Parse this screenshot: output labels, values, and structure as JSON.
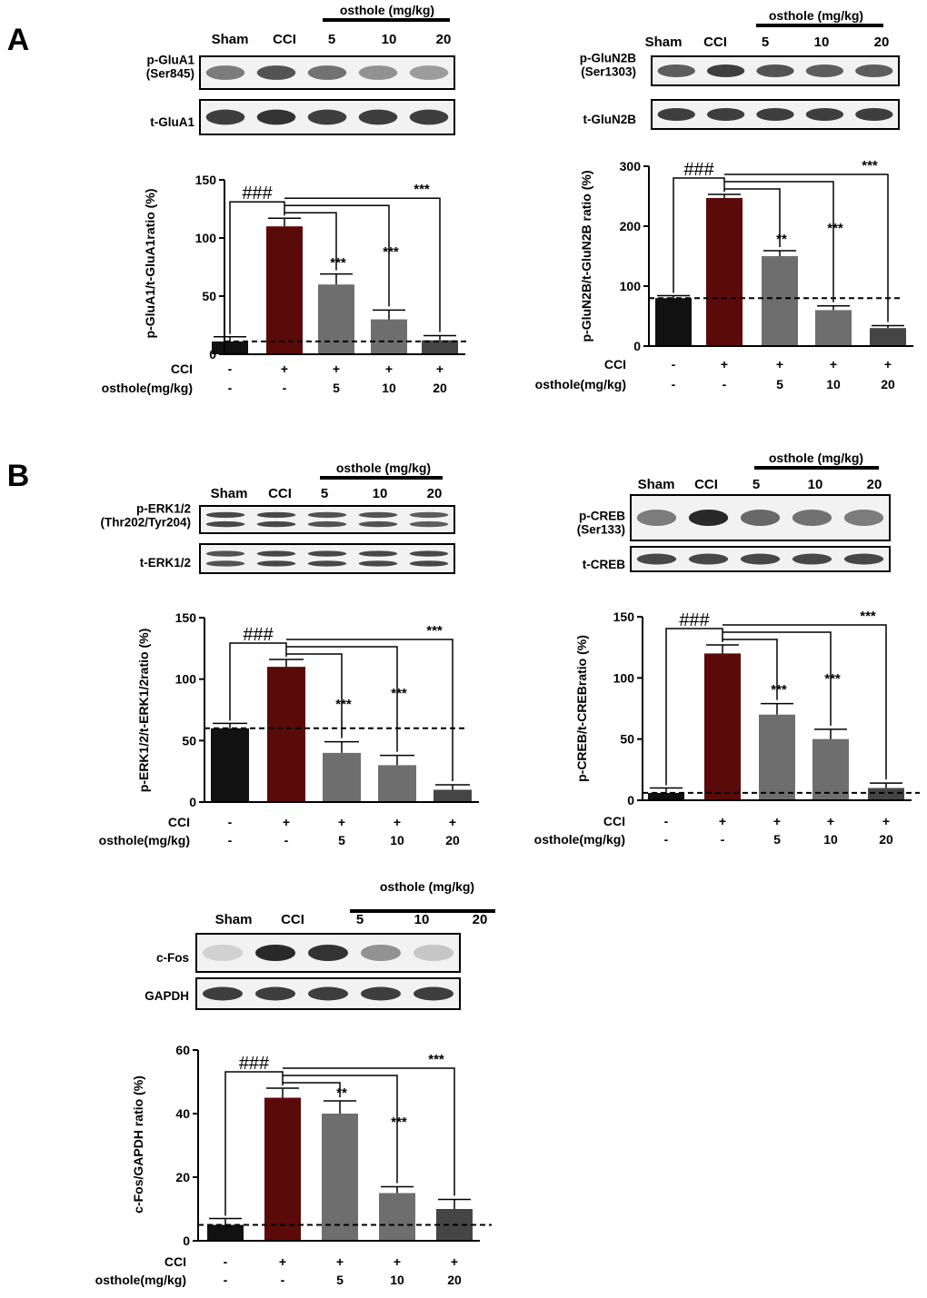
{
  "panels": [
    {
      "letter": "A",
      "blot": {
        "lanes": [
          "Sham",
          "CCI",
          "5",
          "10",
          "20"
        ],
        "treatment_label": "osthole (mg/kg)",
        "rows": [
          {
            "label_lines": [
              "p-GluA1",
              "(Ser845)"
            ],
            "intensity": [
              0.55,
              0.75,
              0.6,
              0.45,
              0.4
            ]
          },
          {
            "label_lines": [
              "t-GluA1"
            ],
            "intensity": [
              0.85,
              0.9,
              0.85,
              0.85,
              0.85
            ]
          }
        ]
      },
      "chart_data": {
        "type": "bar",
        "categories": [
          "Sham",
          "CCI",
          "osthole 5",
          "osthole 10",
          "osthole 20"
        ],
        "values": [
          11,
          110,
          60,
          30,
          12
        ],
        "errors": [
          4,
          7,
          9,
          8,
          4
        ],
        "ylabel": "p-GluA1/t-GluA1ratio (%)",
        "ylim": [
          0,
          150
        ],
        "yticks": [
          0,
          50,
          100,
          150
        ],
        "baseline_value": 11,
        "bar_colors": [
          "#111111",
          "#5b0a0a",
          "#6e6e6e",
          "#6e6e6e",
          "#454545"
        ],
        "conditions": [
          {
            "label": "CCI",
            "values": [
              "-",
              "+",
              "+",
              "+",
              "+"
            ]
          },
          {
            "label": "osthole(mg/kg)",
            "values": [
              "-",
              "-",
              "5",
              "10",
              "20"
            ]
          }
        ],
        "significance": [
          {
            "from": "Sham",
            "to": "CCI",
            "label": "###"
          },
          {
            "from": "CCI",
            "to": "osthole 5",
            "label": "***"
          },
          {
            "from": "CCI",
            "to": "osthole 10",
            "label": "***"
          },
          {
            "from": "CCI",
            "to": "osthole 20",
            "label": "***"
          }
        ]
      }
    },
    {
      "letter": "",
      "blot": {
        "lanes": [
          "Sham",
          "CCI",
          "5",
          "10",
          "20"
        ],
        "treatment_label": "osthole (mg/kg)",
        "rows": [
          {
            "label_lines": [
              "p-GluN2B",
              "(Ser1303)"
            ],
            "intensity": [
              0.7,
              0.85,
              0.75,
              0.7,
              0.7
            ]
          },
          {
            "label_lines": [
              "t-GluN2B"
            ],
            "intensity": [
              0.85,
              0.85,
              0.85,
              0.85,
              0.85
            ]
          }
        ]
      },
      "chart_data": {
        "type": "bar",
        "categories": [
          "Sham",
          "CCI",
          "osthole 5",
          "osthole 10",
          "osthole 20"
        ],
        "values": [
          80,
          247,
          150,
          60,
          30
        ],
        "errors": [
          4,
          6,
          9,
          7,
          4
        ],
        "ylabel": "p-GluN2B/t-GluN2B ratio (%)",
        "ylim": [
          0,
          300
        ],
        "yticks": [
          0,
          100,
          200,
          300
        ],
        "baseline_value": 80,
        "bar_colors": [
          "#111111",
          "#5b0a0a",
          "#6e6e6e",
          "#6e6e6e",
          "#454545"
        ],
        "conditions": [
          {
            "label": "CCI",
            "values": [
              "-",
              "+",
              "+",
              "+",
              "+"
            ]
          },
          {
            "label": "osthole(mg/kg)",
            "values": [
              "-",
              "-",
              "5",
              "10",
              "20"
            ]
          }
        ],
        "significance": [
          {
            "from": "Sham",
            "to": "CCI",
            "label": "###"
          },
          {
            "from": "CCI",
            "to": "osthole 5",
            "label": "**"
          },
          {
            "from": "CCI",
            "to": "osthole 10",
            "label": "***"
          },
          {
            "from": "CCI",
            "to": "osthole 20",
            "label": "***"
          }
        ]
      }
    },
    {
      "letter": "B",
      "blot": {
        "lanes": [
          "Sham",
          "CCI",
          "5",
          "10",
          "20"
        ],
        "treatment_label": "osthole (mg/kg)",
        "rows": [
          {
            "label_lines": [
              "p-ERK1/2",
              "(Thr202/Tyr204)"
            ],
            "intensity": [
              0.8,
              0.8,
              0.75,
              0.75,
              0.7
            ]
          },
          {
            "label_lines": [
              "t-ERK1/2"
            ],
            "intensity": [
              0.75,
              0.8,
              0.8,
              0.8,
              0.8
            ]
          }
        ]
      },
      "chart_data": {
        "type": "bar",
        "categories": [
          "Sham",
          "CCI",
          "osthole 5",
          "osthole 10",
          "osthole 20"
        ],
        "values": [
          60,
          110,
          40,
          30,
          10
        ],
        "errors": [
          4,
          6,
          9,
          8,
          4
        ],
        "ylabel": "p-ERK1/2/t-ERK1/2ratio (%)",
        "ylim": [
          0,
          150
        ],
        "yticks": [
          0,
          50,
          100,
          150
        ],
        "baseline_value": 60,
        "bar_colors": [
          "#111111",
          "#5b0a0a",
          "#6e6e6e",
          "#6e6e6e",
          "#454545"
        ],
        "conditions": [
          {
            "label": "CCI",
            "values": [
              "-",
              "+",
              "+",
              "+",
              "+"
            ]
          },
          {
            "label": "osthole(mg/kg)",
            "values": [
              "-",
              "-",
              "5",
              "10",
              "20"
            ]
          }
        ],
        "significance": [
          {
            "from": "Sham",
            "to": "CCI",
            "label": "###"
          },
          {
            "from": "CCI",
            "to": "osthole 5",
            "label": "***"
          },
          {
            "from": "CCI",
            "to": "osthole 10",
            "label": "***"
          },
          {
            "from": "CCI",
            "to": "osthole 20",
            "label": "***"
          }
        ]
      }
    },
    {
      "letter": "",
      "blot": {
        "lanes": [
          "Sham",
          "CCI",
          "5",
          "10",
          "20"
        ],
        "treatment_label": "osthole (mg/kg)",
        "rows": [
          {
            "label_lines": [
              "p-CREB",
              "(Ser133)"
            ],
            "intensity": [
              0.55,
              0.95,
              0.65,
              0.6,
              0.55
            ]
          },
          {
            "label_lines": [
              "t-CREB"
            ],
            "intensity": [
              0.8,
              0.8,
              0.8,
              0.8,
              0.8
            ]
          }
        ]
      },
      "chart_data": {
        "type": "bar",
        "categories": [
          "Sham",
          "CCI",
          "osthole 5",
          "osthole 10",
          "osthole 20"
        ],
        "values": [
          6,
          120,
          70,
          50,
          10
        ],
        "errors": [
          4,
          7,
          9,
          8,
          4
        ],
        "ylabel": "p-CREB/t-CREBratio (%)",
        "ylim": [
          0,
          150
        ],
        "yticks": [
          0,
          50,
          100,
          150
        ],
        "baseline_value": 6,
        "bar_colors": [
          "#111111",
          "#5b0a0a",
          "#6e6e6e",
          "#6e6e6e",
          "#454545"
        ],
        "conditions": [
          {
            "label": "CCI",
            "values": [
              "-",
              "+",
              "+",
              "+",
              "+"
            ]
          },
          {
            "label": "osthole(mg/kg)",
            "values": [
              "-",
              "-",
              "5",
              "10",
              "20"
            ]
          }
        ],
        "significance": [
          {
            "from": "Sham",
            "to": "CCI",
            "label": "###"
          },
          {
            "from": "CCI",
            "to": "osthole 5",
            "label": "***"
          },
          {
            "from": "CCI",
            "to": "osthole 10",
            "label": "***"
          },
          {
            "from": "CCI",
            "to": "osthole 20",
            "label": "***"
          }
        ]
      }
    },
    {
      "letter": "",
      "blot": {
        "lanes": [
          "Sham",
          "CCI",
          "5",
          "10",
          "20"
        ],
        "treatment_label": "osthole (mg/kg)",
        "rows": [
          {
            "label_lines": [
              "c-Fos"
            ],
            "intensity": [
              0.15,
              0.95,
              0.9,
              0.45,
              0.2
            ]
          },
          {
            "label_lines": [
              "GAPDH"
            ],
            "intensity": [
              0.85,
              0.85,
              0.85,
              0.85,
              0.85
            ]
          }
        ]
      },
      "chart_data": {
        "type": "bar",
        "categories": [
          "Sham",
          "CCI",
          "osthole 5",
          "osthole 10",
          "osthole 20"
        ],
        "values": [
          5,
          45,
          40,
          15,
          10
        ],
        "errors": [
          2,
          3,
          4,
          2,
          3
        ],
        "ylabel": "c-Fos/GAPDH ratio (%)",
        "ylim": [
          0,
          60
        ],
        "yticks": [
          0,
          20,
          40,
          60
        ],
        "baseline_value": 5,
        "bar_colors": [
          "#111111",
          "#5b0a0a",
          "#6e6e6e",
          "#6e6e6e",
          "#454545"
        ],
        "conditions": [
          {
            "label": "CCI",
            "values": [
              "-",
              "+",
              "+",
              "+",
              "+"
            ]
          },
          {
            "label": "osthole(mg/kg)",
            "values": [
              "-",
              "-",
              "5",
              "10",
              "20"
            ]
          }
        ],
        "significance": [
          {
            "from": "Sham",
            "to": "CCI",
            "label": "###"
          },
          {
            "from": "CCI",
            "to": "osthole 5",
            "label": "**"
          },
          {
            "from": "CCI",
            "to": "osthole 10",
            "label": "***"
          },
          {
            "from": "CCI",
            "to": "osthole 20",
            "label": "***"
          }
        ]
      }
    }
  ]
}
